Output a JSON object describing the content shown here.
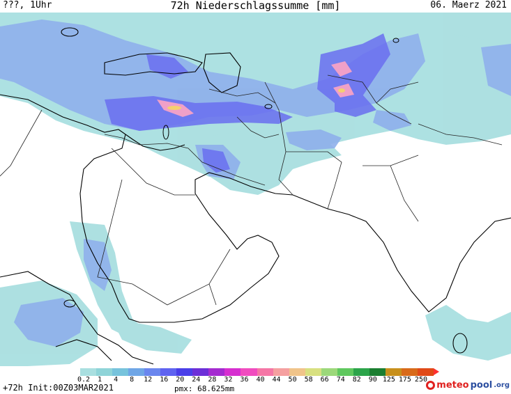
{
  "header": {
    "left_label": "???, 1Uhr",
    "title": "72h Niederschlagssumme [mm]",
    "date": "06. Maerz 2021"
  },
  "legend": {
    "values": [
      "0.2",
      "1",
      "4",
      "8",
      "12",
      "16",
      "20",
      "24",
      "28",
      "32",
      "36",
      "40",
      "44",
      "50",
      "58",
      "66",
      "74",
      "82",
      "90",
      "125",
      "175",
      "250"
    ],
    "colors": [
      "#a9dfe0",
      "#8fd4d8",
      "#77c3dc",
      "#6fa6e6",
      "#6a86ee",
      "#5f63f0",
      "#4a3ee8",
      "#6c2fd8",
      "#a42bd0",
      "#d62fd0",
      "#f04cbf",
      "#f576a6",
      "#f5a0a0",
      "#f0c48a",
      "#d8e080",
      "#9cd87a",
      "#5fc85e",
      "#2ca44a",
      "#1b7e30",
      "#c8901c",
      "#d86a1a",
      "#e04a18"
    ]
  },
  "footer": {
    "forecast": "+72h Init:00Z03MAR2021",
    "pmx": "pmx: 68.625mm"
  },
  "brand": {
    "name_part1": "meteo",
    "name_part2": "pool",
    "suffix": ".org"
  },
  "map": {
    "region": "Middle East and South Asia",
    "precip_light": "#a9dfe0",
    "precip_mid": "#8fb0ec",
    "precip_heavy": "#6a6ff0",
    "precip_peak": "#f0a0c8"
  }
}
